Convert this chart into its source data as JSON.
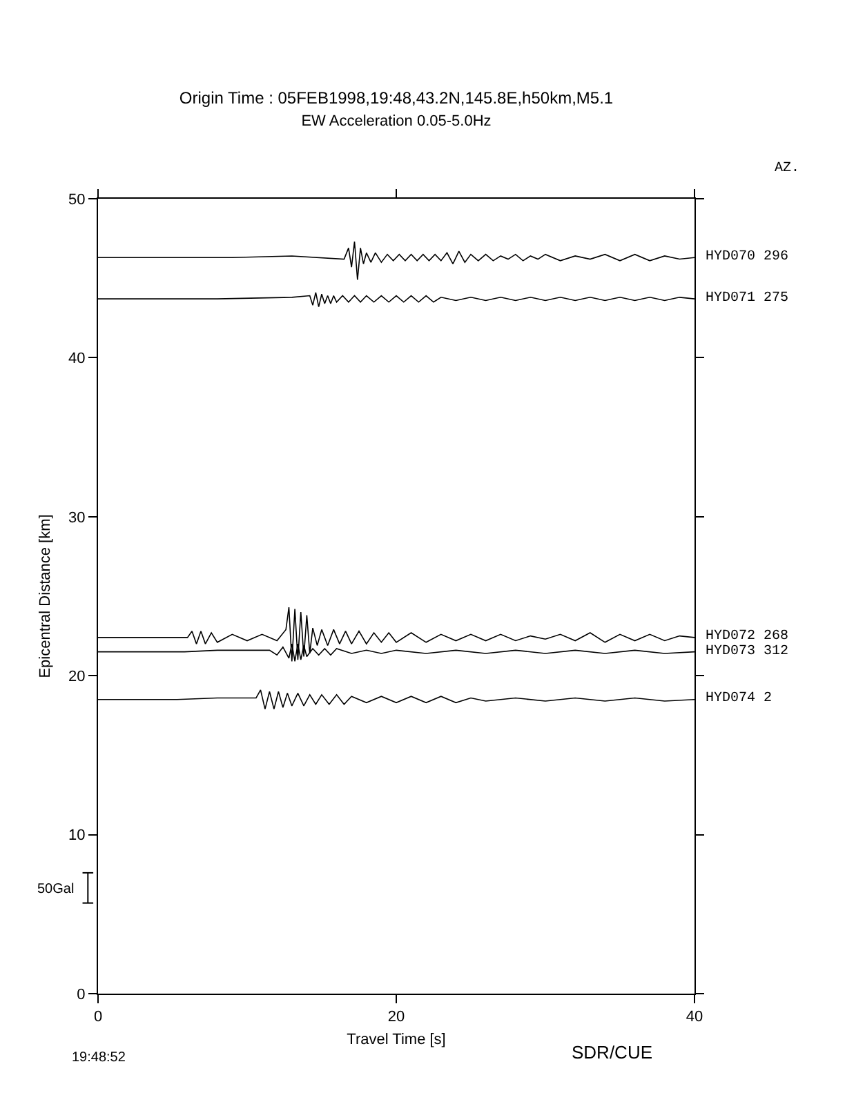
{
  "chart_data": {
    "type": "line",
    "title": "Origin Time : 05FEB1998,19:48,43.2N,145.8E,h50km,M5.1",
    "subtitle": "EW Acceleration 0.05-5.0Hz",
    "xlabel": "Travel Time [s]",
    "ylabel": "Epicentral Distance [km]",
    "annotations": [
      "AZ.",
      "50Gal",
      "19:48:52",
      "SDR/CUE"
    ],
    "xlim": [
      0,
      40
    ],
    "xticks": [
      0,
      20,
      40
    ],
    "ylim": [
      0,
      50
    ],
    "yticks": [
      0,
      10,
      20,
      30,
      40,
      50
    ],
    "grid": false,
    "legend": "right",
    "marker": "none",
    "line_style": "solid",
    "series": [
      {
        "name": "HYD070 296",
        "color": "#000000",
        "x": [
          0,
          9,
          13,
          16.5,
          16.8,
          17.0,
          17.2,
          17.4,
          17.6,
          17.8,
          18.0,
          18.3,
          18.6,
          19,
          19.4,
          19.8,
          20.2,
          20.6,
          21,
          21.4,
          21.8,
          22.2,
          22.6,
          23,
          23.4,
          23.8,
          24.2,
          24.6,
          25,
          25.5,
          26,
          26.5,
          27,
          27.5,
          28,
          28.5,
          29,
          29.5,
          30,
          31,
          32,
          33,
          34,
          35,
          36,
          37,
          38,
          39,
          40
        ],
        "values": [
          46.3,
          46.3,
          46.4,
          46.2,
          46.9,
          45.7,
          47.3,
          44.9,
          46.9,
          45.9,
          46.6,
          46.0,
          46.6,
          46.0,
          46.5,
          46.1,
          46.5,
          46.1,
          46.5,
          46.1,
          46.5,
          46.1,
          46.5,
          46.1,
          46.6,
          45.9,
          46.7,
          46.0,
          46.5,
          46.1,
          46.5,
          46.1,
          46.4,
          46.2,
          46.5,
          46.1,
          46.4,
          46.2,
          46.5,
          46.1,
          46.4,
          46.2,
          46.5,
          46.1,
          46.5,
          46.1,
          46.4,
          46.2,
          46.3
        ]
      },
      {
        "name": "HYD071 275",
        "color": "#000000",
        "x": [
          0,
          8,
          13,
          14.2,
          14.4,
          14.6,
          14.8,
          15.0,
          15.2,
          15.4,
          15.6,
          15.8,
          16.0,
          16.4,
          16.8,
          17.2,
          17.6,
          18,
          18.5,
          19,
          19.5,
          20,
          20.5,
          21,
          21.5,
          22,
          22.5,
          23,
          24,
          25,
          26,
          27,
          28,
          29,
          30,
          31,
          32,
          33,
          34,
          35,
          36,
          37,
          38,
          39,
          40
        ],
        "values": [
          43.7,
          43.7,
          43.8,
          43.9,
          43.3,
          44.1,
          43.2,
          44.0,
          43.4,
          43.9,
          43.4,
          43.9,
          43.5,
          43.9,
          43.5,
          43.9,
          43.5,
          43.9,
          43.5,
          43.9,
          43.5,
          43.9,
          43.5,
          43.9,
          43.5,
          43.9,
          43.5,
          43.8,
          43.6,
          43.8,
          43.6,
          43.8,
          43.6,
          43.8,
          43.6,
          43.8,
          43.6,
          43.8,
          43.6,
          43.8,
          43.6,
          43.8,
          43.6,
          43.8,
          43.7
        ]
      },
      {
        "name": "HYD072 268",
        "color": "#000000",
        "x": [
          0,
          6,
          6.3,
          6.6,
          6.9,
          7.2,
          7.6,
          8,
          9,
          10,
          11,
          12,
          12.6,
          12.8,
          13.0,
          13.2,
          13.4,
          13.6,
          13.8,
          14.0,
          14.2,
          14.4,
          14.7,
          15,
          15.4,
          15.8,
          16.2,
          16.6,
          17,
          17.5,
          18,
          18.5,
          19,
          19.5,
          20,
          21,
          22,
          23,
          24,
          25,
          26,
          27,
          28,
          29,
          30,
          31,
          32,
          33,
          34,
          35,
          36,
          37,
          38,
          39,
          40
        ],
        "values": [
          22.4,
          22.4,
          22.8,
          22.0,
          22.8,
          22.0,
          22.7,
          22.1,
          22.6,
          22.2,
          22.6,
          22.2,
          22.9,
          24.3,
          20.9,
          24.2,
          21.0,
          24.0,
          21.2,
          23.8,
          21.4,
          23.0,
          21.9,
          22.9,
          21.9,
          22.9,
          22.0,
          22.8,
          22.0,
          22.8,
          22.0,
          22.7,
          22.1,
          22.7,
          22.1,
          22.7,
          22.1,
          22.6,
          22.2,
          22.6,
          22.2,
          22.6,
          22.2,
          22.5,
          22.3,
          22.6,
          22.2,
          22.7,
          22.1,
          22.6,
          22.2,
          22.6,
          22.2,
          22.5,
          22.4
        ]
      },
      {
        "name": "HYD073 312",
        "color": "#000000",
        "x": [
          0,
          5.8,
          8,
          11.5,
          12,
          12.4,
          12.8,
          13.0,
          13.2,
          13.4,
          13.6,
          13.8,
          14.0,
          14.4,
          14.8,
          15.2,
          15.6,
          16,
          17,
          18,
          19,
          20,
          22,
          24,
          26,
          28,
          30,
          32,
          34,
          36,
          38,
          40
        ],
        "values": [
          21.5,
          21.5,
          21.6,
          21.6,
          21.3,
          21.8,
          21.1,
          22.0,
          20.9,
          22.0,
          21.0,
          21.9,
          21.2,
          21.7,
          21.3,
          21.7,
          21.3,
          21.7,
          21.4,
          21.6,
          21.4,
          21.6,
          21.4,
          21.6,
          21.4,
          21.6,
          21.4,
          21.6,
          21.4,
          21.6,
          21.4,
          21.5
        ]
      },
      {
        "name": "HYD074 2",
        "color": "#000000",
        "x": [
          0,
          5.3,
          8,
          10.6,
          10.9,
          11.2,
          11.5,
          11.8,
          12.1,
          12.4,
          12.7,
          13,
          13.4,
          13.8,
          14.2,
          14.6,
          15,
          15.5,
          16,
          16.5,
          17,
          18,
          19,
          20,
          21,
          22,
          23,
          24,
          25,
          26,
          28,
          30,
          32,
          34,
          36,
          38,
          40
        ],
        "values": [
          18.5,
          18.5,
          18.6,
          18.6,
          19.1,
          17.9,
          19.0,
          17.9,
          19.0,
          18.0,
          18.9,
          18.1,
          18.9,
          18.1,
          18.8,
          18.2,
          18.8,
          18.2,
          18.8,
          18.2,
          18.7,
          18.3,
          18.7,
          18.3,
          18.7,
          18.3,
          18.7,
          18.3,
          18.6,
          18.4,
          18.6,
          18.4,
          18.6,
          18.4,
          18.6,
          18.4,
          18.5
        ]
      }
    ]
  }
}
